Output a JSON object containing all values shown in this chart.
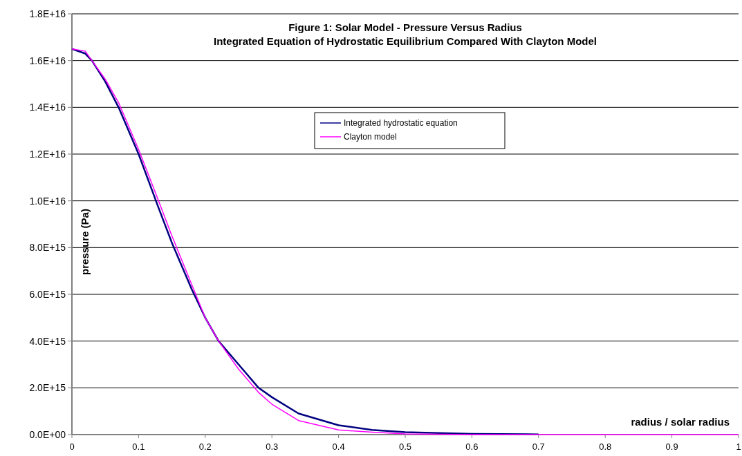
{
  "chart_data": {
    "type": "line",
    "title": "Figure 1: Solar Model - Pressure Versus Radius",
    "subtitle": "Integrated Equation of Hydrostatic Equilibrium Compared With Clayton Model",
    "xlabel": "radius / solar radius",
    "ylabel": "pressure (Pa)",
    "x": [
      0,
      0.02,
      0.03,
      0.05,
      0.07,
      0.1,
      0.13,
      0.15,
      0.18,
      0.2,
      0.22,
      0.25,
      0.28,
      0.3,
      0.34,
      0.4,
      0.45,
      0.5,
      0.6,
      0.7
    ],
    "series": [
      {
        "name": "Integrated hydrostatic equation",
        "color": "#000080",
        "values": [
          1.65e+16,
          1.63e+16,
          1.6e+16,
          1.51e+16,
          1.4e+16,
          1.2e+16,
          9700000000000000.0,
          8200000000000000.0,
          6200000000000000.0,
          5000000000000000.0,
          4000000000000000.0,
          3000000000000000.0,
          2000000000000000.0,
          1600000000000000.0,
          900000000000000.0,
          400000000000000.0,
          200000000000000.0,
          100000000000000.0,
          30000000000000.0,
          10000000000000.0
        ]
      },
      {
        "name": "Clayton model",
        "color": "#ff00ff",
        "x": [
          0,
          0.02,
          0.03,
          0.05,
          0.07,
          0.1,
          0.13,
          0.15,
          0.18,
          0.2,
          0.22,
          0.25,
          0.28,
          0.3,
          0.34,
          0.4,
          0.45,
          0.5,
          0.6,
          1.0
        ],
        "values": [
          1.65e+16,
          1.64e+16,
          1.6e+16,
          1.52e+16,
          1.42e+16,
          1.22e+16,
          1e+16,
          8500000000000000.0,
          6400000000000000.0,
          5000000000000000.0,
          4000000000000000.0,
          2800000000000000.0,
          1800000000000000.0,
          1300000000000000.0,
          600000000000000.0,
          200000000000000.0,
          100000000000000.0,
          30000000000000.0,
          0,
          0
        ]
      }
    ],
    "xlim": [
      0,
      1
    ],
    "xticks": [
      0,
      0.1,
      0.2,
      0.3,
      0.4,
      0.5,
      0.6,
      0.7,
      0.8,
      0.9,
      1
    ],
    "ylim": [
      0,
      1.8e+16
    ],
    "yticks": [
      {
        "value": 0,
        "label": "0.0E+00"
      },
      {
        "value": 2000000000000000.0,
        "label": "2.0E+15"
      },
      {
        "value": 4000000000000000.0,
        "label": "4.0E+15"
      },
      {
        "value": 6000000000000000.0,
        "label": "6.0E+15"
      },
      {
        "value": 8000000000000000.0,
        "label": "8.0E+15"
      },
      {
        "value": 1e+16,
        "label": "1.0E+16"
      },
      {
        "value": 1.2e+16,
        "label": "1.2E+16"
      },
      {
        "value": 1.4e+16,
        "label": "1.4E+16"
      },
      {
        "value": 1.6e+16,
        "label": "1.6E+16"
      },
      {
        "value": 1.8e+16,
        "label": "1.8E+16"
      }
    ],
    "grid": "y",
    "legend": "top",
    "marker": "none",
    "line_style": "solid"
  }
}
